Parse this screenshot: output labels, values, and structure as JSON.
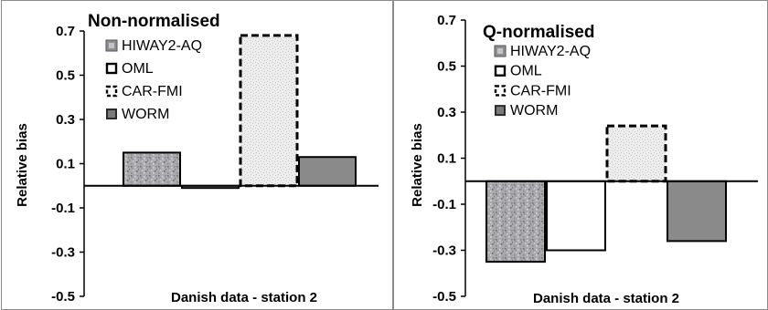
{
  "chart_data": [
    {
      "type": "bar",
      "title": "Non-normalised",
      "xlabel": "Danish data - station 2",
      "ylabel": "Relative bias",
      "ylim": [
        -0.5,
        0.7
      ],
      "yticks": [
        "0.7",
        "0.5",
        "0.3",
        "0.1",
        "-0.1",
        "-0.3",
        "-0.5"
      ],
      "grid": false,
      "legend_position": "top-left",
      "series": [
        {
          "name": "HIWAY2-AQ",
          "values": [
            0.15
          ],
          "style": "speckled",
          "color": "#a8a8ac"
        },
        {
          "name": "OML",
          "values": [
            -0.01
          ],
          "style": "outline",
          "color": "#ffffff"
        },
        {
          "name": "CAR-FMI",
          "values": [
            0.68
          ],
          "style": "dashed-dotted",
          "color": "#e6e6e6"
        },
        {
          "name": "WORM",
          "values": [
            0.13
          ],
          "style": "solid",
          "color": "#8a8a8a"
        }
      ]
    },
    {
      "type": "bar",
      "title": "Q-normalised",
      "xlabel": "Danish data - station 2",
      "ylabel": "Relative bias",
      "ylim": [
        -0.5,
        0.7
      ],
      "yticks": [
        "0.7",
        "0.5",
        "0.3",
        "0.1",
        "-0.1",
        "-0.3",
        "-0.5"
      ],
      "grid": false,
      "legend_position": "top-left",
      "series": [
        {
          "name": "HIWAY2-AQ",
          "values": [
            -0.35
          ],
          "style": "speckled",
          "color": "#a8a8ac"
        },
        {
          "name": "OML",
          "values": [
            -0.3
          ],
          "style": "outline",
          "color": "#ffffff"
        },
        {
          "name": "CAR-FMI",
          "values": [
            0.24
          ],
          "style": "dashed-dotted",
          "color": "#e6e6e6"
        },
        {
          "name": "WORM",
          "values": [
            -0.26
          ],
          "style": "solid",
          "color": "#8a8a8a"
        }
      ]
    }
  ]
}
